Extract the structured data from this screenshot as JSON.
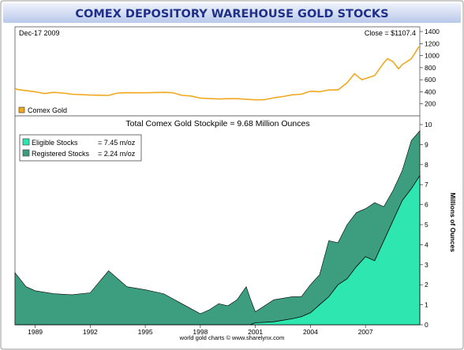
{
  "page_title": "COMEX DEPOSITORY WAREHOUSE GOLD STOCKS",
  "footer": "world gold charts © www.sharelynx.com",
  "colors": {
    "title": "#1f2f8a",
    "title_band": "#cfd9f0",
    "gold_line": "#f0a81e",
    "eligible": "#2ee6b0",
    "registered": "#3c9e7e",
    "frame": "#888888"
  },
  "chart_data": [
    {
      "type": "line",
      "date_label": "Dec-17  2009",
      "close_label": "Close = $1107.4",
      "legend": "Comex Gold",
      "legend_position": "bottom-left",
      "ylim": [
        0,
        1400
      ],
      "yticks": [
        200,
        400,
        600,
        800,
        1000,
        1200,
        1400
      ],
      "grid": false,
      "series": [
        {
          "name": "Comex Gold",
          "x": [
            1987.5,
            1988,
            1988.5,
            1989,
            1989.5,
            1990,
            1990.5,
            1991,
            1992,
            1993,
            1993.5,
            1994,
            1995,
            1996,
            1996.5,
            1997,
            1997.5,
            1998,
            1999,
            1999.5,
            2000,
            2001,
            2001.5,
            2002,
            2002.5,
            2003,
            2003.5,
            2004,
            2004.5,
            2005,
            2005.5,
            2006,
            2006.4,
            2006.8,
            2007,
            2007.5,
            2008,
            2008.2,
            2008.5,
            2008.8,
            2009,
            2009.5,
            2009.96
          ],
          "values": [
            460,
            440,
            420,
            400,
            370,
            390,
            380,
            360,
            345,
            340,
            380,
            385,
            384,
            390,
            385,
            340,
            330,
            295,
            280,
            285,
            285,
            265,
            270,
            300,
            320,
            350,
            360,
            410,
            400,
            430,
            430,
            550,
            700,
            600,
            620,
            670,
            880,
            950,
            900,
            780,
            850,
            950,
            1150
          ]
        }
      ]
    },
    {
      "type": "area",
      "title": "Total Comex Gold Stockpile = 9.68 Million Ounces",
      "ylabel": "Millions of Ounces",
      "ylim": [
        0,
        10
      ],
      "yticks": [
        0,
        1,
        2,
        3,
        4,
        5,
        6,
        7,
        8,
        9,
        10
      ],
      "xlim": [
        1987.9,
        2009.96
      ],
      "xticks": [
        "1989",
        "1992",
        "1995",
        "1998",
        "2001",
        "2004",
        "2007"
      ],
      "legend_position": "top-left",
      "grid": false,
      "series": [
        {
          "name": "Eligible Stocks",
          "legend_value": "= 7.45 m/oz",
          "x": [
            1987.9,
            1998,
            2000.7,
            2001,
            2002,
            2003,
            2003.5,
            2004,
            2004.5,
            2005,
            2005.5,
            2006,
            2006.5,
            2007,
            2007.5,
            2008,
            2008.5,
            2009,
            2009.5,
            2009.96
          ],
          "values": [
            0,
            0,
            0,
            0.1,
            0.15,
            0.3,
            0.4,
            0.6,
            1.0,
            1.4,
            2.0,
            2.3,
            2.9,
            3.4,
            3.2,
            4.2,
            5.2,
            6.2,
            6.8,
            7.45
          ]
        },
        {
          "name": "Registered Stocks",
          "legend_value": "= 2.24 m/oz",
          "x": [
            1987.9,
            1988.5,
            1989,
            1990,
            1991,
            1992,
            1993,
            1994,
            1995,
            1996,
            1996.8,
            1997.5,
            1998,
            1998.5,
            1999,
            1999.5,
            2000,
            2000.5,
            2001,
            2002,
            2003,
            2003.5,
            2004,
            2004.5,
            2005,
            2005.5,
            2006,
            2006.5,
            2007,
            2007.5,
            2008,
            2008.5,
            2009,
            2009.5,
            2009.96
          ],
          "values": [
            2.6,
            1.9,
            1.7,
            1.55,
            1.5,
            1.6,
            2.7,
            1.9,
            1.75,
            1.55,
            1.15,
            0.8,
            0.55,
            0.75,
            1.05,
            0.95,
            1.25,
            1.9,
            0.55,
            1.1,
            1.1,
            1.0,
            1.4,
            1.5,
            2.8,
            2.1,
            2.7,
            2.7,
            2.4,
            2.9,
            1.7,
            1.5,
            1.5,
            2.4,
            2.24
          ]
        }
      ]
    }
  ]
}
